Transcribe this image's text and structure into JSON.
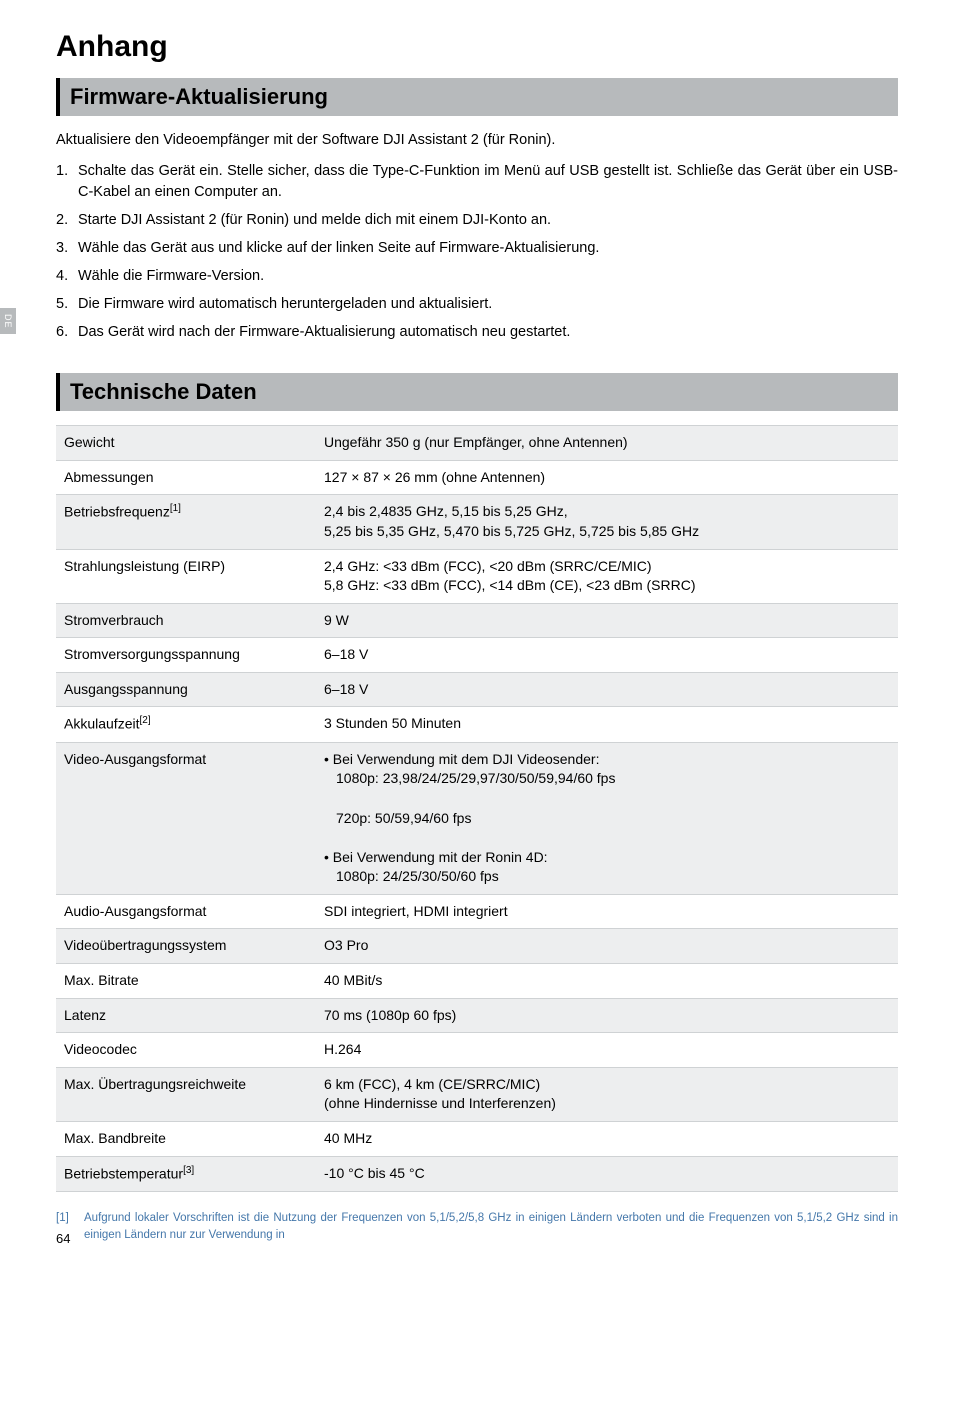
{
  "sideTab": "DE",
  "title": "Anhang",
  "section1": {
    "heading": "Firmware-Aktualisierung",
    "intro": "Aktualisiere den Videoempfänger mit der Software DJI Assistant 2 (für Ronin).",
    "steps": [
      "Schalte das Gerät ein. Stelle sicher, dass die Type-C-Funktion im Menü auf USB gestellt ist. Schließe das Gerät über ein USB-C-Kabel an einen Computer an.",
      "Starte DJI Assistant 2 (für Ronin) und melde dich mit einem DJI-Konto an.",
      "Wähle das Gerät aus und klicke auf der linken Seite auf Firmware-Aktualisierung.",
      "Wähle die Firmware-Version.",
      "Die Firmware wird automatisch heruntergeladen und aktualisiert.",
      "Das Gerät wird nach der Firmware-Aktualisierung automatisch neu gestartet."
    ]
  },
  "section2": {
    "heading": "Technische Daten",
    "rows": [
      {
        "shaded": true,
        "label": "Gewicht",
        "sup": "",
        "value": "Ungefähr 350 g (nur Empfänger, ohne Antennen)"
      },
      {
        "shaded": false,
        "label": "Abmessungen",
        "sup": "",
        "value": "127 × 87 × 26 mm (ohne Antennen)"
      },
      {
        "shaded": true,
        "label": "Betriebsfrequenz",
        "sup": "[1]",
        "value": "2,4 bis 2,4835 GHz, 5,15 bis 5,25 GHz,\n5,25 bis 5,35 GHz, 5,470 bis 5,725 GHz, 5,725 bis 5,85 GHz"
      },
      {
        "shaded": false,
        "label": "Strahlungsleistung (EIRP)",
        "sup": "",
        "value": "2,4 GHz: <33 dBm (FCC), <20 dBm (SRRC/CE/MIC)\n5,8 GHz: <33 dBm (FCC), <14 dBm (CE), <23 dBm (SRRC)"
      },
      {
        "shaded": true,
        "label": "Stromverbrauch",
        "sup": "",
        "value": "9 W"
      },
      {
        "shaded": false,
        "label": "Stromversorgungsspannung",
        "sup": "",
        "value": "6–18 V"
      },
      {
        "shaded": true,
        "label": "Ausgangsspannung",
        "sup": "",
        "value": "6–18 V"
      },
      {
        "shaded": false,
        "label": "Akkulaufzeit",
        "sup": "[2]",
        "value": "3 Stunden 50 Minuten"
      },
      {
        "shaded": true,
        "label": "Video-Ausgangsformat",
        "sup": "",
        "value": "• Bei Verwendung mit dem DJI Videosender:\n  1080p: 23,98/24/25/29,97/30/50/59,94/60 fps\n  720p: 50/59,94/60 fps\n• Bei Verwendung mit der Ronin 4D:\n  1080p: 24/25/30/50/60 fps"
      },
      {
        "shaded": false,
        "label": "Audio-Ausgangsformat",
        "sup": "",
        "value": "SDI integriert, HDMI integriert"
      },
      {
        "shaded": true,
        "label": "Videoübertragungssystem",
        "sup": "",
        "value": "O3 Pro"
      },
      {
        "shaded": false,
        "label": "Max. Bitrate",
        "sup": "",
        "value": "40 MBit/s"
      },
      {
        "shaded": true,
        "label": "Latenz",
        "sup": "",
        "value": "70 ms (1080p 60 fps)"
      },
      {
        "shaded": false,
        "label": "Videocodec",
        "sup": "",
        "value": "H.264"
      },
      {
        "shaded": true,
        "label": "Max. Übertragungsreichweite",
        "sup": "",
        "value": "6 km (FCC), 4 km (CE/SRRC/MIC)\n(ohne Hindernisse und Interferenzen)"
      },
      {
        "shaded": false,
        "label": "Max. Bandbreite",
        "sup": "",
        "value": "40 MHz"
      },
      {
        "shaded": true,
        "label": "Betriebstemperatur",
        "sup": "[3]",
        "value": "-10 °C bis 45 °C"
      }
    ]
  },
  "footnote": {
    "num": "[1]",
    "text": "Aufgrund lokaler Vorschriften ist die Nutzung der Frequenzen von 5,1/5,2/5,8 GHz in einigen Ländern verboten und die Frequenzen von 5,1/5,2 GHz sind in einigen Ländern nur zur Verwendung in"
  },
  "pageNumber": "64"
}
